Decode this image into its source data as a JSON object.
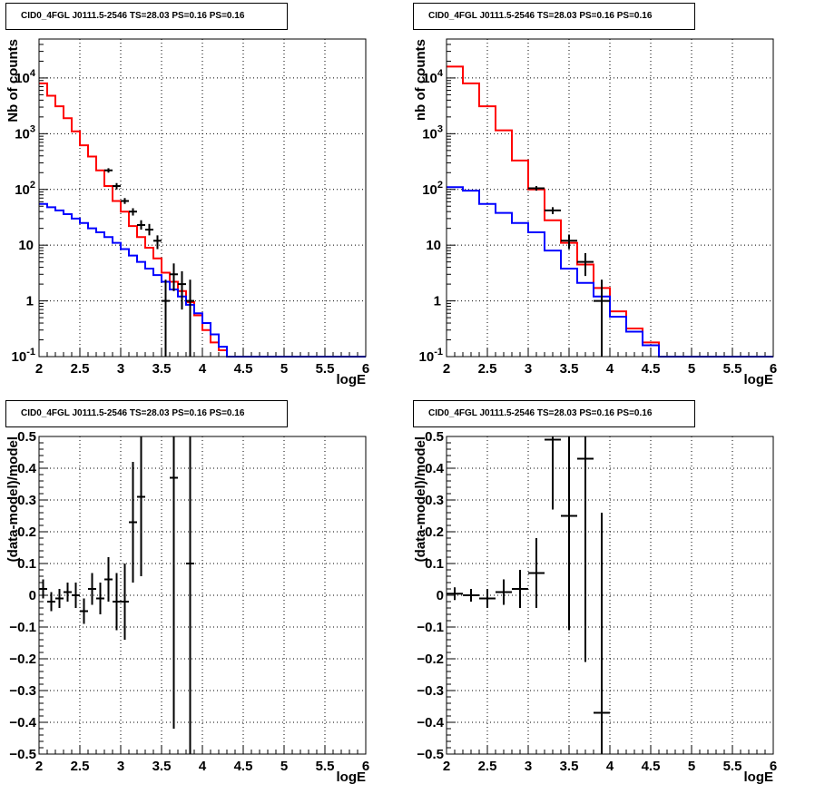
{
  "chart_data": [
    {
      "type": "line",
      "title": "CID0_4FGL J0111.5-2546 TS=28.03 PS=0.16 PS=0.16",
      "xlabel": "logE",
      "ylabel": "Nb of counts",
      "yscale": "log",
      "xlim": [
        2,
        6
      ],
      "ylim": [
        0.1,
        50000
      ],
      "grid": true,
      "xticks": [
        "2",
        "2.5",
        "3",
        "3.5",
        "4",
        "4.5",
        "5",
        "5.5",
        "6"
      ],
      "yticks": [
        "10^-1",
        "1",
        "10",
        "10^2",
        "10^3",
        "10^4"
      ],
      "bin_edges": [
        2.0,
        2.1,
        2.2,
        2.3,
        2.4,
        2.5,
        2.6,
        2.7,
        2.8,
        2.9,
        3.0,
        3.1,
        3.2,
        3.3,
        3.4,
        3.5,
        3.6,
        3.7,
        3.8,
        3.9,
        4.0,
        4.1,
        4.2,
        4.3,
        4.4,
        4.5,
        4.6,
        4.7,
        4.8,
        4.9,
        5.0,
        5.1,
        5.2,
        5.3,
        5.4,
        5.5,
        5.6,
        5.7,
        5.8,
        5.9,
        6.0
      ],
      "series": [
        {
          "color": "#ff0000",
          "values": [
            8000,
            4800,
            3100,
            1900,
            1100,
            620,
            390,
            220,
            115,
            62,
            40,
            22,
            14,
            9,
            5.8,
            3.2,
            2.2,
            1.5,
            0.95,
            0.55,
            0.3,
            0.18,
            0.13,
            0.1,
            0.1,
            0.1,
            0.1,
            0.1,
            0.1,
            0.1,
            0.1,
            0.1,
            0.1,
            0.1,
            0.1,
            0.1,
            0.1,
            0.1,
            0.1,
            0.1
          ]
        },
        {
          "color": "#0000ff",
          "values": [
            55,
            48,
            42,
            36,
            30,
            25,
            20,
            17,
            14,
            11,
            8.5,
            6.5,
            5,
            3.8,
            2.9,
            2.2,
            1.6,
            1.2,
            0.85,
            0.6,
            0.4,
            0.25,
            0.15,
            0.1,
            0.1,
            0.1,
            0.1,
            0.1,
            0.1,
            0.1,
            0.1,
            0.1,
            0.1,
            0.1,
            0.1,
            0.1,
            0.1,
            0.1,
            0.1,
            0.1
          ]
        }
      ],
      "points": [
        {
          "x": 2.85,
          "y": 220,
          "xerr": 0.05,
          "ylo": 200,
          "yhi": 240
        },
        {
          "x": 2.95,
          "y": 115,
          "xerr": 0.05,
          "ylo": 100,
          "yhi": 130
        },
        {
          "x": 3.05,
          "y": 62,
          "xerr": 0.05,
          "ylo": 55,
          "yhi": 70
        },
        {
          "x": 3.15,
          "y": 40,
          "xerr": 0.05,
          "ylo": 34,
          "yhi": 46
        },
        {
          "x": 3.25,
          "y": 23,
          "xerr": 0.05,
          "ylo": 19,
          "yhi": 28
        },
        {
          "x": 3.35,
          "y": 19,
          "xerr": 0.05,
          "ylo": 15,
          "yhi": 24
        },
        {
          "x": 3.45,
          "y": 12,
          "xerr": 0.05,
          "ylo": 8.5,
          "yhi": 15
        },
        {
          "x": 3.55,
          "y": 1,
          "xerr": 0.05,
          "ylo": 0.1,
          "yhi": 2.4
        },
        {
          "x": 3.65,
          "y": 3,
          "xerr": 0.05,
          "ylo": 1.5,
          "yhi": 4.7
        },
        {
          "x": 3.75,
          "y": 2,
          "xerr": 0.05,
          "ylo": 0.7,
          "yhi": 3.4
        },
        {
          "x": 3.85,
          "y": 1,
          "xerr": 0.05,
          "ylo": 0.1,
          "yhi": 2.4
        }
      ]
    },
    {
      "type": "line",
      "title": "CID0_4FGL J0111.5-2546 TS=28.03 PS=0.16 PS=0.16",
      "xlabel": "logE",
      "ylabel": "nb of counts",
      "yscale": "log",
      "xlim": [
        2,
        6
      ],
      "ylim": [
        0.1,
        50000
      ],
      "grid": true,
      "xticks": [
        "2",
        "2.5",
        "3",
        "3.5",
        "4",
        "4.5",
        "5",
        "5.5",
        "6"
      ],
      "yticks": [
        "10^-1",
        "1",
        "10",
        "10^2",
        "10^3",
        "10^4"
      ],
      "bin_edges": [
        2.0,
        2.2,
        2.4,
        2.6,
        2.8,
        3.0,
        3.2,
        3.4,
        3.6,
        3.8,
        4.0,
        4.2,
        4.4,
        4.6,
        4.8,
        5.0,
        5.2,
        5.4,
        5.6,
        5.8,
        6.0
      ],
      "series": [
        {
          "color": "#ff0000",
          "values": [
            16000,
            8000,
            3100,
            1150,
            330,
            100,
            28,
            11,
            4.5,
            1.7,
            0.65,
            0.32,
            0.18,
            0.1,
            0.1,
            0.1,
            0.1,
            0.1,
            0.1,
            0.1
          ]
        },
        {
          "color": "#0000ff",
          "values": [
            110,
            95,
            55,
            38,
            25,
            17,
            8,
            3.8,
            2.1,
            1.2,
            0.52,
            0.28,
            0.16,
            0.1,
            0.1,
            0.1,
            0.1,
            0.1,
            0.1,
            0.1
          ]
        }
      ],
      "points": [
        {
          "x": 3.1,
          "y": 105,
          "xerr": 0.1,
          "ylo": 95,
          "yhi": 115
        },
        {
          "x": 3.3,
          "y": 42,
          "xerr": 0.1,
          "ylo": 36,
          "yhi": 48
        },
        {
          "x": 3.5,
          "y": 12,
          "xerr": 0.1,
          "ylo": 8.5,
          "yhi": 15.5
        },
        {
          "x": 3.7,
          "y": 5,
          "xerr": 0.1,
          "ylo": 2.8,
          "yhi": 7.2
        },
        {
          "x": 3.9,
          "y": 1,
          "xerr": 0.1,
          "ylo": 0.1,
          "yhi": 2.4
        }
      ]
    },
    {
      "type": "scatter",
      "title": "CID0_4FGL J0111.5-2546 TS=28.03 PS=0.16 PS=0.16",
      "xlabel": "logE",
      "ylabel": "(data-model)/model",
      "xlim": [
        2,
        6
      ],
      "ylim": [
        -0.5,
        0.5
      ],
      "grid": true,
      "xticks": [
        "2",
        "2.5",
        "3",
        "3.5",
        "4",
        "4.5",
        "5",
        "5.5",
        "6"
      ],
      "yticks": [
        "−0.5",
        "−0.4",
        "−0.3",
        "−0.2",
        "−0.1",
        "0",
        "0.1",
        "0.2",
        "0.3",
        "0.4",
        "0.5"
      ],
      "points": [
        {
          "x": 2.05,
          "y": 0.02,
          "xerr": 0.05,
          "ylo": -0.01,
          "yhi": 0.05
        },
        {
          "x": 2.15,
          "y": -0.02,
          "xerr": 0.05,
          "ylo": -0.05,
          "yhi": 0.01
        },
        {
          "x": 2.25,
          "y": -0.01,
          "xerr": 0.05,
          "ylo": -0.04,
          "yhi": 0.02
        },
        {
          "x": 2.35,
          "y": 0.01,
          "xerr": 0.05,
          "ylo": -0.02,
          "yhi": 0.04
        },
        {
          "x": 2.45,
          "y": 0.0,
          "xerr": 0.05,
          "ylo": -0.04,
          "yhi": 0.04
        },
        {
          "x": 2.55,
          "y": -0.05,
          "xerr": 0.05,
          "ylo": -0.09,
          "yhi": -0.01
        },
        {
          "x": 2.65,
          "y": 0.02,
          "xerr": 0.05,
          "ylo": -0.03,
          "yhi": 0.07
        },
        {
          "x": 2.75,
          "y": -0.01,
          "xerr": 0.05,
          "ylo": -0.06,
          "yhi": 0.04
        },
        {
          "x": 2.85,
          "y": 0.05,
          "xerr": 0.05,
          "ylo": -0.02,
          "yhi": 0.12
        },
        {
          "x": 2.95,
          "y": -0.02,
          "xerr": 0.05,
          "ylo": -0.11,
          "yhi": 0.07
        },
        {
          "x": 3.05,
          "y": -0.02,
          "xerr": 0.05,
          "ylo": -0.14,
          "yhi": 0.1
        },
        {
          "x": 3.15,
          "y": 0.23,
          "xerr": 0.05,
          "ylo": 0.04,
          "yhi": 0.42
        },
        {
          "x": 3.25,
          "y": 0.31,
          "xerr": 0.05,
          "ylo": 0.06,
          "yhi": 0.5
        },
        {
          "x": 3.65,
          "y": 0.37,
          "xerr": 0.05,
          "ylo": -0.42,
          "yhi": 0.5
        },
        {
          "x": 3.85,
          "y": 0.1,
          "xerr": 0.05,
          "ylo": -0.5,
          "yhi": 0.5
        }
      ]
    },
    {
      "type": "scatter",
      "title": "CID0_4FGL J0111.5-2546 TS=28.03 PS=0.16 PS=0.16",
      "xlabel": "logE",
      "ylabel": "(data-model)/model",
      "xlim": [
        2,
        6
      ],
      "ylim": [
        -0.5,
        0.5
      ],
      "grid": true,
      "xticks": [
        "2",
        "2.5",
        "3",
        "3.5",
        "4",
        "4.5",
        "5",
        "5.5",
        "6"
      ],
      "yticks": [
        "−0.5",
        "−0.4",
        "−0.3",
        "−0.2",
        "−0.1",
        "0",
        "0.1",
        "0.2",
        "0.3",
        "0.4",
        "0.5"
      ],
      "points": [
        {
          "x": 2.1,
          "y": 0.005,
          "xerr": 0.1,
          "ylo": -0.015,
          "yhi": 0.025
        },
        {
          "x": 2.3,
          "y": 0.0,
          "xerr": 0.1,
          "ylo": -0.02,
          "yhi": 0.02
        },
        {
          "x": 2.5,
          "y": -0.01,
          "xerr": 0.1,
          "ylo": -0.04,
          "yhi": 0.02
        },
        {
          "x": 2.7,
          "y": 0.01,
          "xerr": 0.1,
          "ylo": -0.03,
          "yhi": 0.05
        },
        {
          "x": 2.9,
          "y": 0.02,
          "xerr": 0.1,
          "ylo": -0.04,
          "yhi": 0.08
        },
        {
          "x": 3.1,
          "y": 0.07,
          "xerr": 0.1,
          "ylo": -0.04,
          "yhi": 0.18
        },
        {
          "x": 3.3,
          "y": 0.49,
          "xerr": 0.1,
          "ylo": 0.27,
          "yhi": 0.5
        },
        {
          "x": 3.5,
          "y": 0.25,
          "xerr": 0.1,
          "ylo": -0.11,
          "yhi": 0.5
        },
        {
          "x": 3.7,
          "y": 0.43,
          "xerr": 0.1,
          "ylo": -0.21,
          "yhi": 0.5
        },
        {
          "x": 3.9,
          "y": -0.37,
          "xerr": 0.1,
          "ylo": -0.5,
          "yhi": 0.26
        }
      ]
    }
  ]
}
